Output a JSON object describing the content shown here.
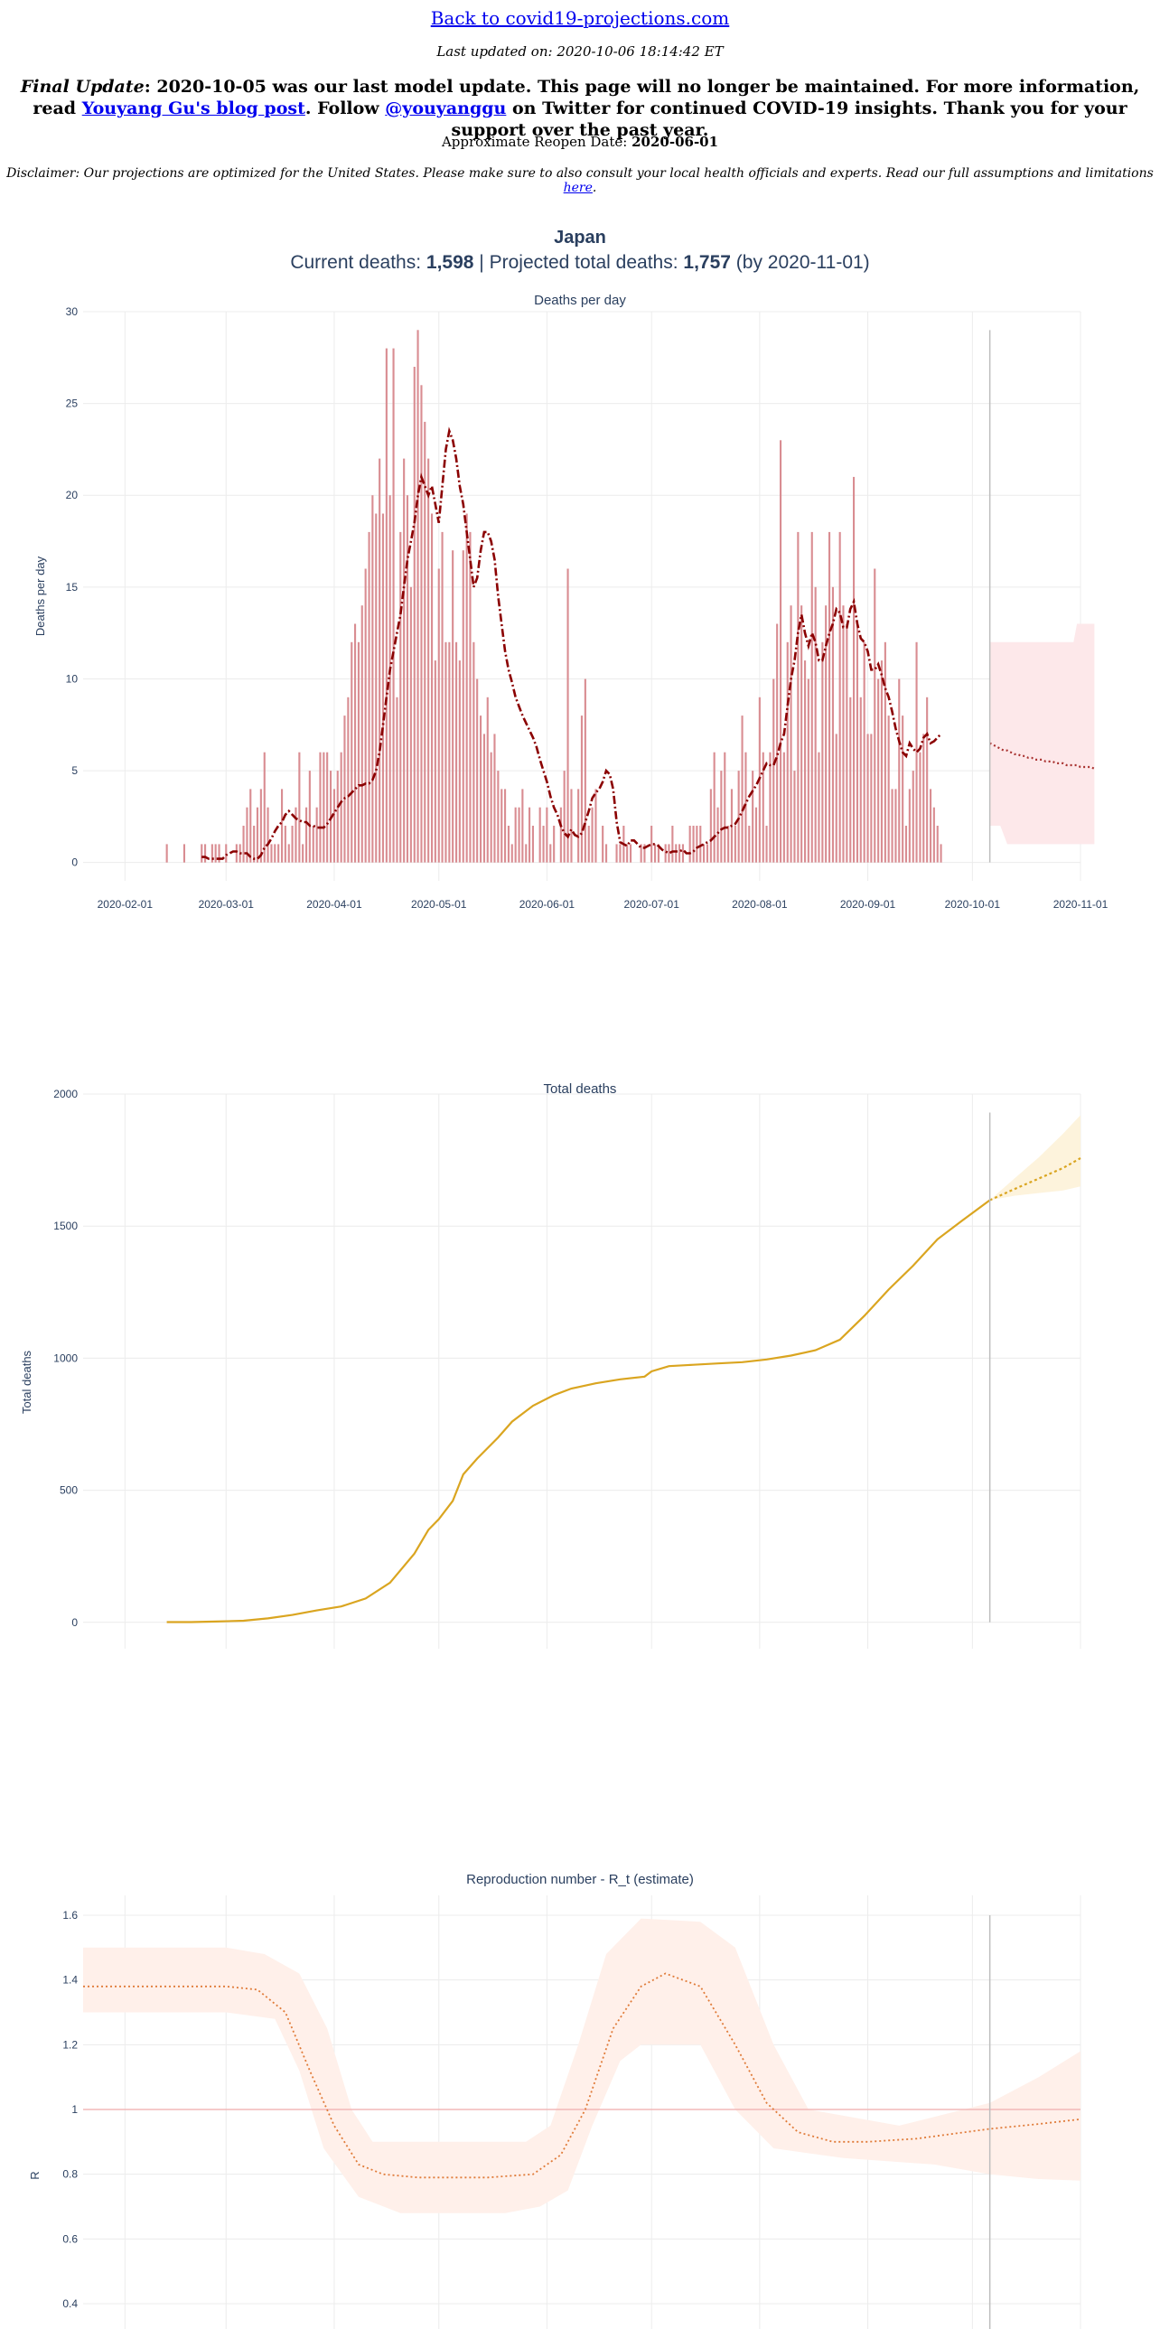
{
  "header": {
    "back_link": "Back to covid19-projections.com",
    "last_updated_label": "Last updated on:",
    "last_updated_value": "2020-10-06 18:14:42 ET",
    "final_update_label": "Final Update",
    "final_update_text": ": 2020-10-05 was our last model update. This page will no longer be maintained. For more information, read ",
    "blog_link": "Youyang Gu's blog post",
    "follow_prefix": ". Follow ",
    "twitter_link": "@youyanggu",
    "follow_suffix": " on Twitter for continued COVID-19 insights. Thank you for your support over the past year.",
    "reopen_label": "Approximate Reopen Date:",
    "reopen_value": "2020-06-01",
    "disclaimer_text": "Disclaimer: Our projections are optimized for the United States. Please make sure to also consult your local health officials and experts. Read our full assumptions and limitations ",
    "disclaimer_link": "here",
    "disclaimer_end": "."
  },
  "summary": {
    "country": "Japan",
    "current_label": "Current deaths: ",
    "current_value": "1,598",
    "separator": " | ",
    "projected_label": "Projected total deaths: ",
    "projected_value": "1,757",
    "by_text": " (by 2020-11-01)"
  },
  "colors": {
    "daily_bar": "#d98d92",
    "daily_avg": "#8b0000",
    "daily_band": "#fde8ea",
    "total_line": "#daa520",
    "total_band": "#fdf3dc",
    "r_line": "#e07b39",
    "r_band": "#fff0ea",
    "r_ref": "#f2b8b8",
    "grid": "#ececec",
    "axis_text": "#2a3f5f",
    "title_text": "#2a3f5f"
  },
  "chart_data": [
    {
      "type": "bar",
      "title": "Deaths per day",
      "ylabel": "Deaths per day",
      "ylim": [
        -1,
        30
      ],
      "yticks": [
        0,
        5,
        10,
        15,
        20,
        25,
        30
      ],
      "xticks": [
        "2020-02-01",
        "2020-03-01",
        "2020-04-01",
        "2020-05-01",
        "2020-06-01",
        "2020-07-01",
        "2020-08-01",
        "2020-09-01",
        "2020-10-01",
        "2020-11-01"
      ],
      "x_start": "2020-02-13",
      "values": [
        1,
        0,
        0,
        0,
        0,
        1,
        0,
        0,
        0,
        0,
        1,
        1,
        0,
        1,
        1,
        1,
        0,
        1,
        0,
        0,
        1,
        1,
        2,
        3,
        4,
        2,
        3,
        4,
        6,
        3,
        1,
        1,
        1,
        4,
        2,
        1,
        2,
        3,
        6,
        1,
        3,
        5,
        2,
        3,
        6,
        6,
        6,
        5,
        4,
        5,
        6,
        8,
        9,
        12,
        13,
        12,
        14,
        16,
        18,
        20,
        19,
        22,
        19,
        28,
        20,
        28,
        9,
        18,
        22,
        20,
        15,
        27,
        29,
        26,
        24,
        22,
        19,
        11,
        16,
        18,
        12,
        12,
        17,
        12,
        11,
        17,
        19,
        18,
        12,
        10,
        8,
        7,
        9,
        6,
        7,
        5,
        4,
        4,
        2,
        1,
        3,
        3,
        4,
        1,
        3,
        2,
        0,
        3,
        2,
        3,
        1,
        2,
        0,
        3,
        5,
        16,
        4,
        0,
        4,
        8,
        10,
        2,
        3,
        4,
        0,
        2,
        1,
        0,
        0,
        1,
        1,
        2,
        1,
        1,
        0,
        0,
        1,
        1,
        0,
        2,
        1,
        1,
        0,
        1,
        1,
        2,
        1,
        1,
        1,
        0,
        2,
        2,
        2,
        2,
        1,
        1,
        4,
        6,
        3,
        5,
        6,
        2,
        4,
        2,
        5,
        8,
        6,
        2,
        5,
        3,
        9,
        6,
        2,
        6,
        10,
        13,
        23,
        6,
        12,
        14,
        5,
        18,
        14,
        11,
        10,
        18,
        15,
        6,
        12,
        14,
        18,
        15,
        7,
        18,
        14,
        13,
        9,
        21,
        13,
        9,
        12,
        7,
        7,
        16,
        10,
        11,
        12,
        8,
        4,
        4,
        10,
        8,
        2,
        4,
        5,
        12,
        6,
        7,
        9,
        4,
        3,
        2,
        1
      ],
      "avg": [
        0.3,
        0.3,
        0.2,
        0.2,
        0.2,
        0.2,
        0.2,
        0.4,
        0.5,
        0.6,
        0.6,
        0.5,
        0.5,
        0.5,
        0.3,
        0.2,
        0.2,
        0.4,
        0.8,
        1.0,
        1.3,
        1.7,
        2.0,
        2.2,
        2.6,
        2.8,
        2.6,
        2.4,
        2.3,
        2.2,
        2.2,
        2.0,
        2.0,
        1.9,
        1.9,
        1.9,
        2.1,
        2.4,
        2.7,
        3.0,
        3.3,
        3.5,
        3.6,
        3.8,
        4.0,
        4.2,
        4.2,
        4.3,
        4.3,
        4.5,
        5.0,
        6.0,
        7.5,
        9.0,
        10.5,
        11.5,
        12.5,
        13.5,
        15.0,
        16.5,
        17.5,
        18.5,
        20.0,
        21.0,
        20.5,
        20.0,
        20.5,
        19.5,
        18.5,
        20.5,
        22.5,
        23.5,
        23.0,
        22.0,
        20.5,
        19.5,
        18.0,
        16.5,
        15.0,
        15.5,
        17.0,
        18.0,
        18.0,
        17.5,
        16.5,
        14.5,
        13.0,
        11.5,
        10.5,
        9.8,
        9.0,
        8.5,
        8.0,
        7.6,
        7.2,
        6.8,
        6.3,
        5.6,
        5.0,
        4.4,
        3.6,
        3.0,
        2.6,
        2.0,
        1.6,
        1.4,
        1.8,
        1.5,
        1.4,
        1.6,
        2.2,
        2.8,
        3.5,
        3.8,
        4.0,
        4.4,
        5.0,
        4.8,
        4.0,
        2.2,
        1.1,
        1.0,
        0.9,
        1.2,
        1.2,
        1.0,
        0.8,
        0.8,
        0.9,
        1.0,
        1.0,
        0.9,
        0.7,
        0.6,
        0.5,
        0.6,
        0.6,
        0.6,
        0.7,
        0.5,
        0.5,
        0.6,
        0.8,
        0.9,
        1.0,
        1.1,
        1.2,
        1.4,
        1.6,
        1.8,
        1.9,
        1.9,
        2.0,
        2.1,
        2.4,
        2.8,
        3.2,
        3.6,
        3.9,
        4.2,
        4.6,
        5.0,
        5.4,
        5.3,
        5.3,
        5.8,
        6.5,
        7.0,
        8.5,
        10.0,
        11.0,
        12.5,
        13.5,
        12.5,
        11.8,
        12.5,
        12.0,
        11.0,
        11.0,
        11.8,
        12.5,
        13.0,
        13.8,
        13.6,
        12.8,
        12.8,
        13.8,
        14.2,
        13.0,
        12.2,
        12.0,
        11.5,
        10.5,
        10.5,
        10.8,
        10.2,
        9.5,
        9.0,
        8.2,
        7.3,
        6.6,
        6.0,
        5.8,
        6.5,
        6.2,
        6.0,
        6.2,
        6.8,
        7.0,
        6.5,
        6.6,
        6.8,
        7.0
      ],
      "projection": [
        6.5,
        6.4,
        6.3,
        6.2,
        6.1,
        6.1,
        6.0,
        5.9,
        5.9,
        5.8,
        5.8,
        5.7,
        5.7,
        5.6,
        5.6,
        5.6,
        5.5,
        5.5,
        5.5,
        5.4,
        5.4,
        5.4,
        5.3,
        5.3,
        5.3,
        5.3,
        5.2,
        5.2,
        5.2,
        5.2,
        5.1
      ],
      "projection_upper": [
        12,
        12,
        12,
        12,
        12,
        12,
        12,
        12,
        12,
        12,
        12,
        12,
        12,
        12,
        12,
        12,
        12,
        12,
        12,
        12,
        12,
        12,
        12,
        12,
        12,
        13,
        13,
        13,
        13,
        13,
        13
      ],
      "projection_lower": [
        2,
        2,
        2,
        2,
        1.5,
        1,
        1,
        1,
        1,
        1,
        1,
        1,
        1,
        1,
        1,
        1,
        1,
        1,
        1,
        1,
        1,
        1,
        1,
        1,
        1,
        1,
        1,
        1,
        1,
        1,
        1
      ],
      "today": "2020-10-06",
      "projection_end": "2020-11-01"
    },
    {
      "type": "line",
      "title": "Total deaths",
      "ylabel": "Total deaths",
      "ylim": [
        -100,
        2000
      ],
      "yticks": [
        0,
        500,
        1000,
        1500,
        2000
      ],
      "x_start": "2020-02-13",
      "points": [
        [
          "2020-02-13",
          1
        ],
        [
          "2020-02-20",
          1
        ],
        [
          "2020-02-27",
          3
        ],
        [
          "2020-03-06",
          6
        ],
        [
          "2020-03-13",
          15
        ],
        [
          "2020-03-20",
          28
        ],
        [
          "2020-03-27",
          45
        ],
        [
          "2020-04-03",
          60
        ],
        [
          "2020-04-10",
          90
        ],
        [
          "2020-04-17",
          150
        ],
        [
          "2020-04-24",
          260
        ],
        [
          "2020-04-28",
          350
        ],
        [
          "2020-05-01",
          390
        ],
        [
          "2020-05-05",
          460
        ],
        [
          "2020-05-08",
          560
        ],
        [
          "2020-05-12",
          620
        ],
        [
          "2020-05-18",
          700
        ],
        [
          "2020-05-22",
          760
        ],
        [
          "2020-05-28",
          820
        ],
        [
          "2020-06-03",
          860
        ],
        [
          "2020-06-08",
          885
        ],
        [
          "2020-06-15",
          905
        ],
        [
          "2020-06-22",
          920
        ],
        [
          "2020-06-29",
          930
        ],
        [
          "2020-07-01",
          950
        ],
        [
          "2020-07-06",
          970
        ],
        [
          "2020-07-13",
          975
        ],
        [
          "2020-07-20",
          980
        ],
        [
          "2020-07-27",
          985
        ],
        [
          "2020-08-03",
          995
        ],
        [
          "2020-08-10",
          1010
        ],
        [
          "2020-08-17",
          1030
        ],
        [
          "2020-08-24",
          1070
        ],
        [
          "2020-08-31",
          1160
        ],
        [
          "2020-09-07",
          1260
        ],
        [
          "2020-09-14",
          1350
        ],
        [
          "2020-09-21",
          1450
        ],
        [
          "2020-09-28",
          1520
        ],
        [
          "2020-10-06",
          1598
        ]
      ],
      "projection": [
        [
          "2020-10-06",
          1598
        ],
        [
          "2020-10-13",
          1640
        ],
        [
          "2020-10-20",
          1680
        ],
        [
          "2020-10-27",
          1720
        ],
        [
          "2020-11-01",
          1757
        ]
      ],
      "projection_upper": [
        [
          "2020-10-06",
          1598
        ],
        [
          "2020-10-13",
          1680
        ],
        [
          "2020-10-20",
          1760
        ],
        [
          "2020-10-27",
          1850
        ],
        [
          "2020-11-01",
          1920
        ]
      ],
      "projection_lower": [
        [
          "2020-10-06",
          1598
        ],
        [
          "2020-10-13",
          1615
        ],
        [
          "2020-10-20",
          1625
        ],
        [
          "2020-10-27",
          1635
        ],
        [
          "2020-11-01",
          1650
        ]
      ],
      "today": "2020-10-06"
    },
    {
      "type": "line",
      "title": "Reproduction number - R_t (estimate)",
      "ylabel": "R",
      "ylim": [
        0.4,
        1.65
      ],
      "yticks": [
        0.4,
        0.6,
        0.8,
        1,
        1.2,
        1.4,
        1.6
      ],
      "reference_line": 1,
      "points": [
        [
          "2020-01-20",
          1.38
        ],
        [
          "2020-02-15",
          1.38
        ],
        [
          "2020-03-01",
          1.38
        ],
        [
          "2020-03-10",
          1.37
        ],
        [
          "2020-03-18",
          1.3
        ],
        [
          "2020-03-25",
          1.12
        ],
        [
          "2020-04-01",
          0.95
        ],
        [
          "2020-04-08",
          0.83
        ],
        [
          "2020-04-15",
          0.8
        ],
        [
          "2020-04-25",
          0.79
        ],
        [
          "2020-05-15",
          0.79
        ],
        [
          "2020-05-28",
          0.8
        ],
        [
          "2020-06-05",
          0.86
        ],
        [
          "2020-06-12",
          1.0
        ],
        [
          "2020-06-20",
          1.25
        ],
        [
          "2020-06-28",
          1.38
        ],
        [
          "2020-07-05",
          1.42
        ],
        [
          "2020-07-15",
          1.38
        ],
        [
          "2020-07-25",
          1.2
        ],
        [
          "2020-08-03",
          1.02
        ],
        [
          "2020-08-12",
          0.93
        ],
        [
          "2020-08-22",
          0.9
        ],
        [
          "2020-09-01",
          0.9
        ],
        [
          "2020-09-15",
          0.91
        ],
        [
          "2020-10-06",
          0.94
        ]
      ],
      "upper": [
        [
          "2020-01-20",
          1.5
        ],
        [
          "2020-03-01",
          1.5
        ],
        [
          "2020-03-12",
          1.48
        ],
        [
          "2020-03-22",
          1.42
        ],
        [
          "2020-03-30",
          1.25
        ],
        [
          "2020-04-06",
          1.0
        ],
        [
          "2020-04-12",
          0.9
        ],
        [
          "2020-05-26",
          0.9
        ],
        [
          "2020-06-02",
          0.95
        ],
        [
          "2020-06-10",
          1.2
        ],
        [
          "2020-06-18",
          1.48
        ],
        [
          "2020-06-28",
          1.59
        ],
        [
          "2020-07-15",
          1.58
        ],
        [
          "2020-07-25",
          1.5
        ],
        [
          "2020-08-05",
          1.2
        ],
        [
          "2020-08-15",
          1.0
        ],
        [
          "2020-09-10",
          0.95
        ],
        [
          "2020-10-06",
          1.02
        ]
      ],
      "lower": [
        [
          "2020-01-20",
          1.3
        ],
        [
          "2020-03-01",
          1.3
        ],
        [
          "2020-03-15",
          1.28
        ],
        [
          "2020-03-22",
          1.12
        ],
        [
          "2020-03-29",
          0.88
        ],
        [
          "2020-04-08",
          0.73
        ],
        [
          "2020-04-20",
          0.68
        ],
        [
          "2020-05-20",
          0.68
        ],
        [
          "2020-05-30",
          0.7
        ],
        [
          "2020-06-07",
          0.75
        ],
        [
          "2020-06-14",
          0.95
        ],
        [
          "2020-06-22",
          1.15
        ],
        [
          "2020-06-28",
          1.2
        ],
        [
          "2020-07-15",
          1.2
        ],
        [
          "2020-07-25",
          1.0
        ],
        [
          "2020-08-05",
          0.88
        ],
        [
          "2020-08-25",
          0.85
        ],
        [
          "2020-09-20",
          0.83
        ],
        [
          "2020-10-06",
          0.8
        ]
      ],
      "projection": [
        [
          "2020-10-06",
          0.94
        ],
        [
          "2020-10-20",
          0.955
        ],
        [
          "2020-11-01",
          0.97
        ]
      ],
      "projection_upper": [
        [
          "2020-10-06",
          1.02
        ],
        [
          "2020-10-20",
          1.1
        ],
        [
          "2020-11-01",
          1.18
        ]
      ],
      "projection_lower": [
        [
          "2020-10-06",
          0.8
        ],
        [
          "2020-10-20",
          0.785
        ],
        [
          "2020-11-01",
          0.78
        ]
      ],
      "today": "2020-10-06"
    }
  ]
}
